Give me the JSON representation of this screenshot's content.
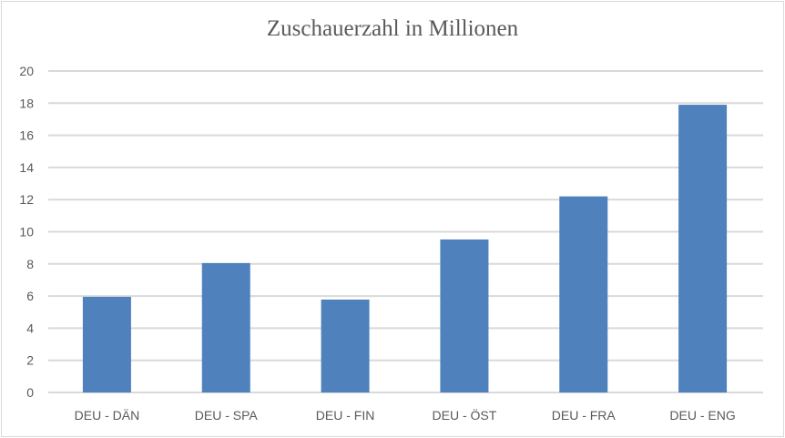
{
  "chart_data": {
    "type": "bar",
    "title": "Zuschauerzahl in Millionen",
    "xlabel": "",
    "ylabel": "",
    "categories": [
      "DEU - DÄN",
      "DEU - SPA",
      "DEU - FIN",
      "DEU - ÖST",
      "DEU - FRA",
      "DEU - ENG"
    ],
    "values": [
      5.95,
      8.05,
      5.78,
      9.52,
      12.2,
      17.9
    ],
    "ylim": [
      0,
      20
    ],
    "yticks": [
      "0",
      "2",
      "4",
      "6",
      "8",
      "10",
      "12",
      "14",
      "16",
      "18",
      "20"
    ],
    "grid": true,
    "legend": "none",
    "bar_color": "#4f81bd",
    "grid_color": "#d9d9d9"
  }
}
